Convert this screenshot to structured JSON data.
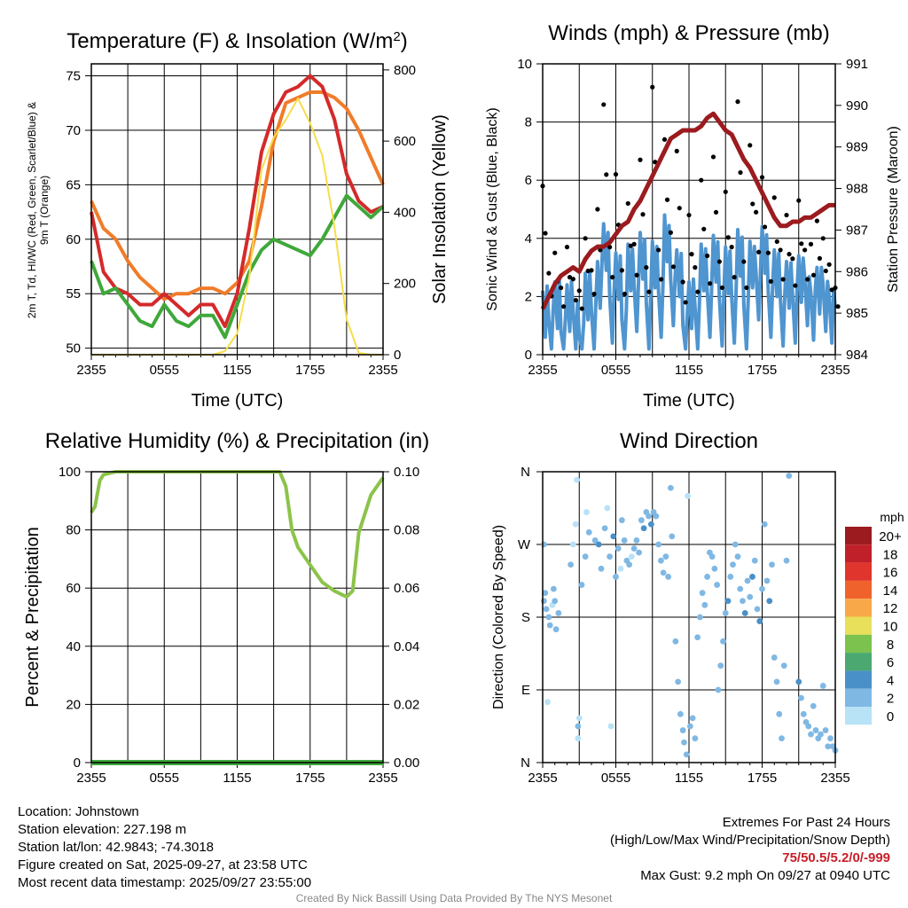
{
  "chart_data": [
    {
      "type": "line",
      "title": "Temperature (F) & Insolation (W/m²)",
      "xlabel": "Time (UTC)",
      "ylabel": "2m T, Td, HI/WC (Red, Green, Scarlet/Blue) & 9m T (Orange)",
      "ylabel_line1": "2m T, T",
      "ylabel_sub": "d",
      "ylabel_line1b": ", HI/WC (Red, Green, Scarlet/Blue)",
      "ylabel_line2": "& 9m T (Orange)",
      "ylabel_right": "Solar Insolation (Yellow)",
      "xticks": [
        "2355",
        "0555",
        "1155",
        "1755",
        "2355"
      ],
      "yticks": [
        50,
        55,
        60,
        65,
        70,
        75
      ],
      "yticks_right": [
        0,
        200,
        400,
        600,
        800
      ],
      "ylim": [
        49.4,
        76.1
      ],
      "ylim_right": [
        0,
        817
      ],
      "x_hours": [
        0,
        1,
        2,
        3,
        4,
        5,
        6,
        7,
        8,
        9,
        10,
        11,
        12,
        13,
        14,
        15,
        16,
        17,
        18,
        19,
        20,
        21,
        22,
        23,
        24
      ],
      "series": [
        {
          "name": "9m T",
          "color": "#f07c2a",
          "axis": "left",
          "values": [
            63.5,
            61,
            60,
            58,
            56.5,
            55.5,
            54.5,
            55,
            55,
            55.5,
            55.5,
            55,
            56,
            58,
            63,
            69,
            72.5,
            73,
            73.5,
            73.5,
            73,
            72,
            70,
            67.5,
            65
          ]
        },
        {
          "name": "2m T",
          "color": "#d42a2a",
          "axis": "left",
          "values": [
            62.5,
            57,
            55.5,
            55,
            54,
            54,
            55,
            54,
            53,
            54,
            54,
            52,
            55,
            61,
            68,
            71.5,
            73.5,
            74,
            75,
            74,
            71,
            66,
            63.5,
            62.5,
            63
          ]
        },
        {
          "name": "Td",
          "color": "#3fa83a",
          "axis": "left",
          "values": [
            58,
            55,
            55.5,
            54,
            52.5,
            52,
            54,
            52.5,
            52,
            53,
            53,
            51,
            54,
            57,
            59,
            60,
            59.5,
            59,
            58.5,
            60,
            62,
            64,
            63,
            62,
            63
          ]
        },
        {
          "name": "Solar Insolation",
          "color": "#f6dd4a",
          "axis": "right",
          "values": [
            0,
            0,
            0,
            0,
            0,
            0,
            0,
            0,
            0,
            0,
            0,
            10,
            60,
            220,
            520,
            610,
            660,
            720,
            650,
            560,
            360,
            100,
            5,
            0,
            0
          ]
        }
      ]
    },
    {
      "type": "line",
      "title": "Winds (mph) & Pressure (mb)",
      "xlabel": "Time (UTC)",
      "ylabel": "Sonic Wind & Gust (Blue, Black)",
      "ylabel_right": "Station Pressure (Maroon)",
      "xticks": [
        "2355",
        "0555",
        "1155",
        "1755",
        "2355"
      ],
      "yticks": [
        0,
        2,
        4,
        6,
        8,
        10
      ],
      "yticks_right": [
        984,
        985,
        986,
        987,
        988,
        989,
        990,
        991
      ],
      "ylim": [
        0,
        10
      ],
      "ylim_right": [
        984,
        991
      ],
      "x_hours": [
        0,
        0.5,
        1,
        1.5,
        2,
        2.5,
        3,
        3.5,
        4,
        4.5,
        5,
        5.5,
        6,
        6.5,
        7,
        7.5,
        8,
        8.5,
        9,
        9.5,
        10,
        10.5,
        11,
        11.5,
        12,
        12.5,
        13,
        13.5,
        14,
        14.5,
        15,
        15.5,
        16,
        16.5,
        17,
        17.5,
        18,
        18.5,
        19,
        19.5,
        20,
        20.5,
        21,
        21.5,
        22,
        22.5,
        23,
        23.5,
        24
      ],
      "series": [
        {
          "name": "Sonic Wind",
          "color": "#4f95d0",
          "axis": "left",
          "values": [
            2.2,
            1.2,
            2.5,
            0.8,
            2.4,
            1.5,
            0.6,
            2.8,
            1.5,
            3.2,
            4.5,
            2.0,
            3.5,
            1.2,
            3.8,
            2.4,
            4.2,
            1.8,
            3.9,
            2.2,
            4.8,
            2.6,
            3.6,
            1.0,
            2.5,
            1.6,
            3.8,
            2.2,
            4.1,
            1.9,
            3.7,
            2.0,
            4.3,
            1.7,
            3.9,
            2.8,
            4.4,
            2.2,
            3.6,
            1.9,
            3.2,
            2.0,
            3.4,
            2.6,
            2.1,
            3.0,
            2.4,
            2.0,
            1.6
          ]
        },
        {
          "name": "Gust",
          "color": "#000000",
          "axis": "left",
          "values": [
            5.8,
            2.8,
            3.5,
            2.3,
            3.7,
            2.6,
            2.2,
            4.0,
            2.9,
            5.0,
            8.6,
            3.7,
            6.2,
            2.9,
            5.2,
            3.8,
            6.7,
            3.0,
            9.2,
            3.6,
            7.4,
            4.2,
            7.0,
            2.5,
            4.8,
            3.0,
            6.0,
            3.4,
            6.8,
            3.2,
            5.6,
            3.7,
            8.7,
            3.2,
            7.2,
            4.9,
            6.1,
            3.5,
            5.4,
            3.6,
            4.8,
            3.3,
            5.3,
            3.6,
            3.8,
            4.6,
            4.0,
            3.1,
            2.3
          ]
        },
        {
          "name": "Station Pressure",
          "color": "#9b1b1e",
          "axis": "right",
          "values": [
            985.1,
            985.4,
            985.7,
            985.9,
            986.0,
            986.1,
            986.0,
            986.3,
            986.5,
            986.6,
            986.6,
            986.7,
            986.9,
            987.1,
            987.2,
            987.5,
            987.7,
            988.0,
            988.3,
            988.6,
            988.9,
            989.2,
            989.3,
            989.4,
            989.4,
            989.4,
            989.5,
            989.7,
            989.8,
            989.6,
            989.4,
            989.3,
            989.0,
            988.7,
            988.5,
            988.2,
            987.9,
            987.6,
            987.3,
            987.1,
            987.1,
            987.2,
            987.2,
            987.3,
            987.3,
            987.4,
            987.5,
            987.6,
            987.6
          ]
        }
      ]
    },
    {
      "type": "line",
      "title": "Relative Humidity (%) & Precipitation (in)",
      "ylabel": "Percent & Precipitation",
      "xticks": [
        "2355",
        "0555",
        "1155",
        "1755",
        "2355"
      ],
      "yticks": [
        0,
        20,
        40,
        60,
        80,
        100
      ],
      "yticks_right": [
        "0.00",
        "0.02",
        "0.04",
        "0.06",
        "0.08",
        "0.10"
      ],
      "ylim": [
        0,
        100
      ],
      "ylim_right": [
        0,
        0.1
      ],
      "x_hours": [
        0,
        0.3,
        0.7,
        1,
        2,
        4,
        6,
        8,
        10,
        12,
        14,
        15.5,
        16,
        16.5,
        17,
        18,
        19,
        20,
        20.5,
        21,
        21.5,
        22,
        23,
        24
      ],
      "series": [
        {
          "name": "Relative Humidity",
          "color": "#8cc34a",
          "axis": "left",
          "values": [
            86,
            88,
            97,
            99,
            100,
            100,
            100,
            100,
            100,
            100,
            100,
            100,
            95,
            80,
            74,
            68,
            62,
            59,
            58,
            57,
            59,
            79,
            92,
            98
          ]
        },
        {
          "name": "Precipitation",
          "color": "#3fa83a",
          "axis": "right",
          "values": [
            0,
            0,
            0,
            0,
            0,
            0,
            0,
            0,
            0,
            0,
            0,
            0,
            0,
            0,
            0,
            0,
            0,
            0,
            0,
            0,
            0,
            0,
            0,
            0
          ]
        }
      ]
    },
    {
      "type": "scatter",
      "title": "Wind Direction",
      "ylabel": "Direction (Colored By Speed)",
      "xticks": [
        "2355",
        "0555",
        "1155",
        "1755",
        "2355"
      ],
      "yticks": [
        "N",
        "E",
        "S",
        "W",
        "N"
      ],
      "ylim": [
        0,
        360
      ],
      "legend_title": "mph",
      "legend_labels": [
        "20+",
        "18",
        "16",
        "14",
        "12",
        "10",
        "8",
        "6",
        "4",
        "2",
        "0"
      ],
      "legend_colors": [
        "#9b1b1e",
        "#c0202a",
        "#e0352c",
        "#f0622c",
        "#f8a848",
        "#e8e05a",
        "#7cc24e",
        "#4aa870",
        "#4a90c8",
        "#80b8e4",
        "#b8e2f6"
      ],
      "legend_placement": "right",
      "points": [
        [
          0.1,
          200,
          3
        ],
        [
          0.2,
          210,
          2
        ],
        [
          0.3,
          190,
          3
        ],
        [
          0.5,
          180,
          2
        ],
        [
          0.6,
          170,
          3
        ],
        [
          0.8,
          195,
          1
        ],
        [
          0.9,
          215,
          2
        ],
        [
          1.0,
          200,
          3
        ],
        [
          1.1,
          165,
          3
        ],
        [
          1.3,
          185,
          2
        ],
        [
          0.4,
          75,
          1
        ],
        [
          0.1,
          270,
          3
        ],
        [
          2.3,
          245,
          2
        ],
        [
          2.5,
          270,
          1
        ],
        [
          2.7,
          295,
          1
        ],
        [
          2.8,
          350,
          1
        ],
        [
          2.9,
          30,
          1
        ],
        [
          3.0,
          55,
          1
        ],
        [
          2.9,
          45,
          2
        ],
        [
          3.2,
          220,
          2
        ],
        [
          3.6,
          310,
          1
        ],
        [
          3.8,
          285,
          3
        ],
        [
          3.5,
          255,
          2
        ],
        [
          4.3,
          275,
          3
        ],
        [
          4.6,
          270,
          4
        ],
        [
          4.8,
          240,
          2
        ],
        [
          5.1,
          290,
          3
        ],
        [
          5.3,
          315,
          1
        ],
        [
          5.5,
          255,
          2
        ],
        [
          5.6,
          45,
          1
        ],
        [
          5.8,
          280,
          4
        ],
        [
          6.0,
          230,
          3
        ],
        [
          6.2,
          265,
          2
        ],
        [
          6.4,
          240,
          1
        ],
        [
          6.5,
          300,
          2
        ],
        [
          6.7,
          275,
          3
        ],
        [
          6.9,
          250,
          2
        ],
        [
          7.1,
          245,
          2
        ],
        [
          7.3,
          255,
          1
        ],
        [
          7.5,
          265,
          3
        ],
        [
          7.7,
          275,
          3
        ],
        [
          7.9,
          260,
          2
        ],
        [
          8.1,
          300,
          3
        ],
        [
          8.3,
          290,
          4
        ],
        [
          8.5,
          310,
          3
        ],
        [
          8.7,
          305,
          2
        ],
        [
          8.9,
          295,
          4
        ],
        [
          9.1,
          310,
          3
        ],
        [
          9.3,
          305,
          3
        ],
        [
          9.5,
          270,
          2
        ],
        [
          9.7,
          250,
          3
        ],
        [
          9.9,
          235,
          2
        ],
        [
          10.1,
          255,
          3
        ],
        [
          10.3,
          230,
          3
        ],
        [
          10.5,
          340,
          2
        ],
        [
          10.6,
          280,
          2
        ],
        [
          10.9,
          150,
          3
        ],
        [
          11.1,
          100,
          3
        ],
        [
          11.3,
          60,
          3
        ],
        [
          11.5,
          40,
          2
        ],
        [
          11.6,
          25,
          3
        ],
        [
          11.8,
          10,
          2
        ],
        [
          11.9,
          330,
          1
        ],
        [
          12.1,
          45,
          3
        ],
        [
          12.3,
          55,
          3
        ],
        [
          12.5,
          30,
          2
        ],
        [
          12.7,
          155,
          3
        ],
        [
          12.9,
          180,
          2
        ],
        [
          13.1,
          210,
          3
        ],
        [
          13.3,
          195,
          2
        ],
        [
          13.5,
          230,
          3
        ],
        [
          13.7,
          260,
          2
        ],
        [
          13.9,
          255,
          3
        ],
        [
          14.1,
          240,
          3
        ],
        [
          14.3,
          220,
          2
        ],
        [
          14.4,
          90,
          2
        ],
        [
          14.6,
          120,
          3
        ],
        [
          14.8,
          150,
          2
        ],
        [
          15.0,
          185,
          2
        ],
        [
          15.2,
          200,
          4
        ],
        [
          15.4,
          230,
          3
        ],
        [
          15.6,
          245,
          3
        ],
        [
          15.8,
          270,
          3
        ],
        [
          16.0,
          255,
          2
        ],
        [
          16.2,
          215,
          3
        ],
        [
          16.4,
          200,
          3
        ],
        [
          16.6,
          185,
          4
        ],
        [
          16.8,
          225,
          3
        ],
        [
          17.0,
          205,
          3
        ],
        [
          17.2,
          230,
          4
        ],
        [
          17.4,
          250,
          3
        ],
        [
          17.6,
          190,
          3
        ],
        [
          17.8,
          175,
          4
        ],
        [
          18.0,
          215,
          3
        ],
        [
          18.2,
          295,
          2
        ],
        [
          18.4,
          225,
          3
        ],
        [
          18.6,
          200,
          4
        ],
        [
          18.8,
          245,
          3
        ],
        [
          19.0,
          130,
          2
        ],
        [
          19.2,
          100,
          3
        ],
        [
          19.4,
          60,
          3
        ],
        [
          19.6,
          30,
          2
        ],
        [
          19.8,
          120,
          2
        ],
        [
          20.0,
          250,
          3
        ],
        [
          20.2,
          355,
          2
        ],
        [
          21.0,
          100,
          4
        ],
        [
          21.2,
          80,
          3
        ],
        [
          21.4,
          60,
          3
        ],
        [
          21.6,
          50,
          3
        ],
        [
          21.8,
          45,
          3
        ],
        [
          22.0,
          35,
          3
        ],
        [
          22.2,
          70,
          3
        ],
        [
          22.4,
          40,
          3
        ],
        [
          22.6,
          30,
          2
        ],
        [
          22.8,
          35,
          3
        ],
        [
          23.0,
          95,
          3
        ],
        [
          23.2,
          40,
          2
        ],
        [
          23.4,
          20,
          3
        ],
        [
          23.6,
          30,
          3
        ],
        [
          23.8,
          20,
          3
        ],
        [
          24.0,
          15,
          3
        ]
      ]
    }
  ],
  "footer": {
    "location": "Location: Johnstown",
    "elevation": "Station elevation: 227.198 m",
    "latlon": "Station lat/lon: 42.9843; -74.3018",
    "created": "Figure created on Sat, 2025-09-27, at 23:58 UTC",
    "recent": "Most recent data timestamp: 2025/09/27 23:55:00",
    "extremes_title": "Extremes For Past 24 Hours",
    "extremes_legend": "(High/Low/Max Wind/Precipitation/Snow Depth)",
    "extremes_values": "75/50.5/5.2/0/-999",
    "max_gust": "Max Gust: 9.2 mph On 09/27 at 0940 UTC",
    "credit": "Created By Nick Bassill Using Data Provided By The NYS Mesonet"
  }
}
